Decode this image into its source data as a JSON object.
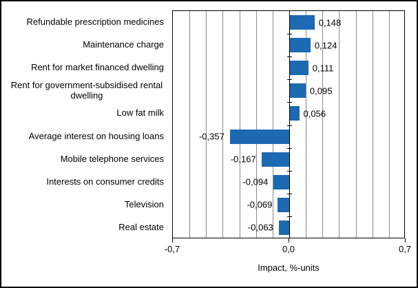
{
  "chart_data": {
    "type": "bar",
    "orientation": "horizontal",
    "title": "",
    "xlabel": "Impact, %-units",
    "xlim": [
      -0.7,
      0.7
    ],
    "gridline_step": 0.1,
    "grid_on": true,
    "categories": [
      "Refundable prescription medicines",
      "Maintenance charge",
      "Rent for market financed dwelling",
      "Rent for government-subsidised rental dwelling",
      "Low fat milk",
      "Average interest on housing loans",
      "Mobile telephone services",
      "Interests on consumer credits",
      "Television",
      "Real estate"
    ],
    "values": [
      0.148,
      0.124,
      0.111,
      0.095,
      0.056,
      -0.357,
      -0.167,
      -0.094,
      -0.069,
      -0.063
    ],
    "value_labels": [
      "0,148",
      "0,124",
      "0,111",
      "0,095",
      "0,056",
      "-0,357",
      "-0,167",
      "-0,094",
      "-0,069",
      "-0,063"
    ],
    "x_ticks": [
      {
        "value": -0.7,
        "label": "-0,7"
      },
      {
        "value": 0.0,
        "label": "0,0"
      },
      {
        "value": 0.7,
        "label": "0,7"
      }
    ],
    "colors": {
      "bar": "#1d69b2",
      "grid": "#898989",
      "axis": "#000000",
      "text": "#000000",
      "background": "#ffffff"
    }
  }
}
